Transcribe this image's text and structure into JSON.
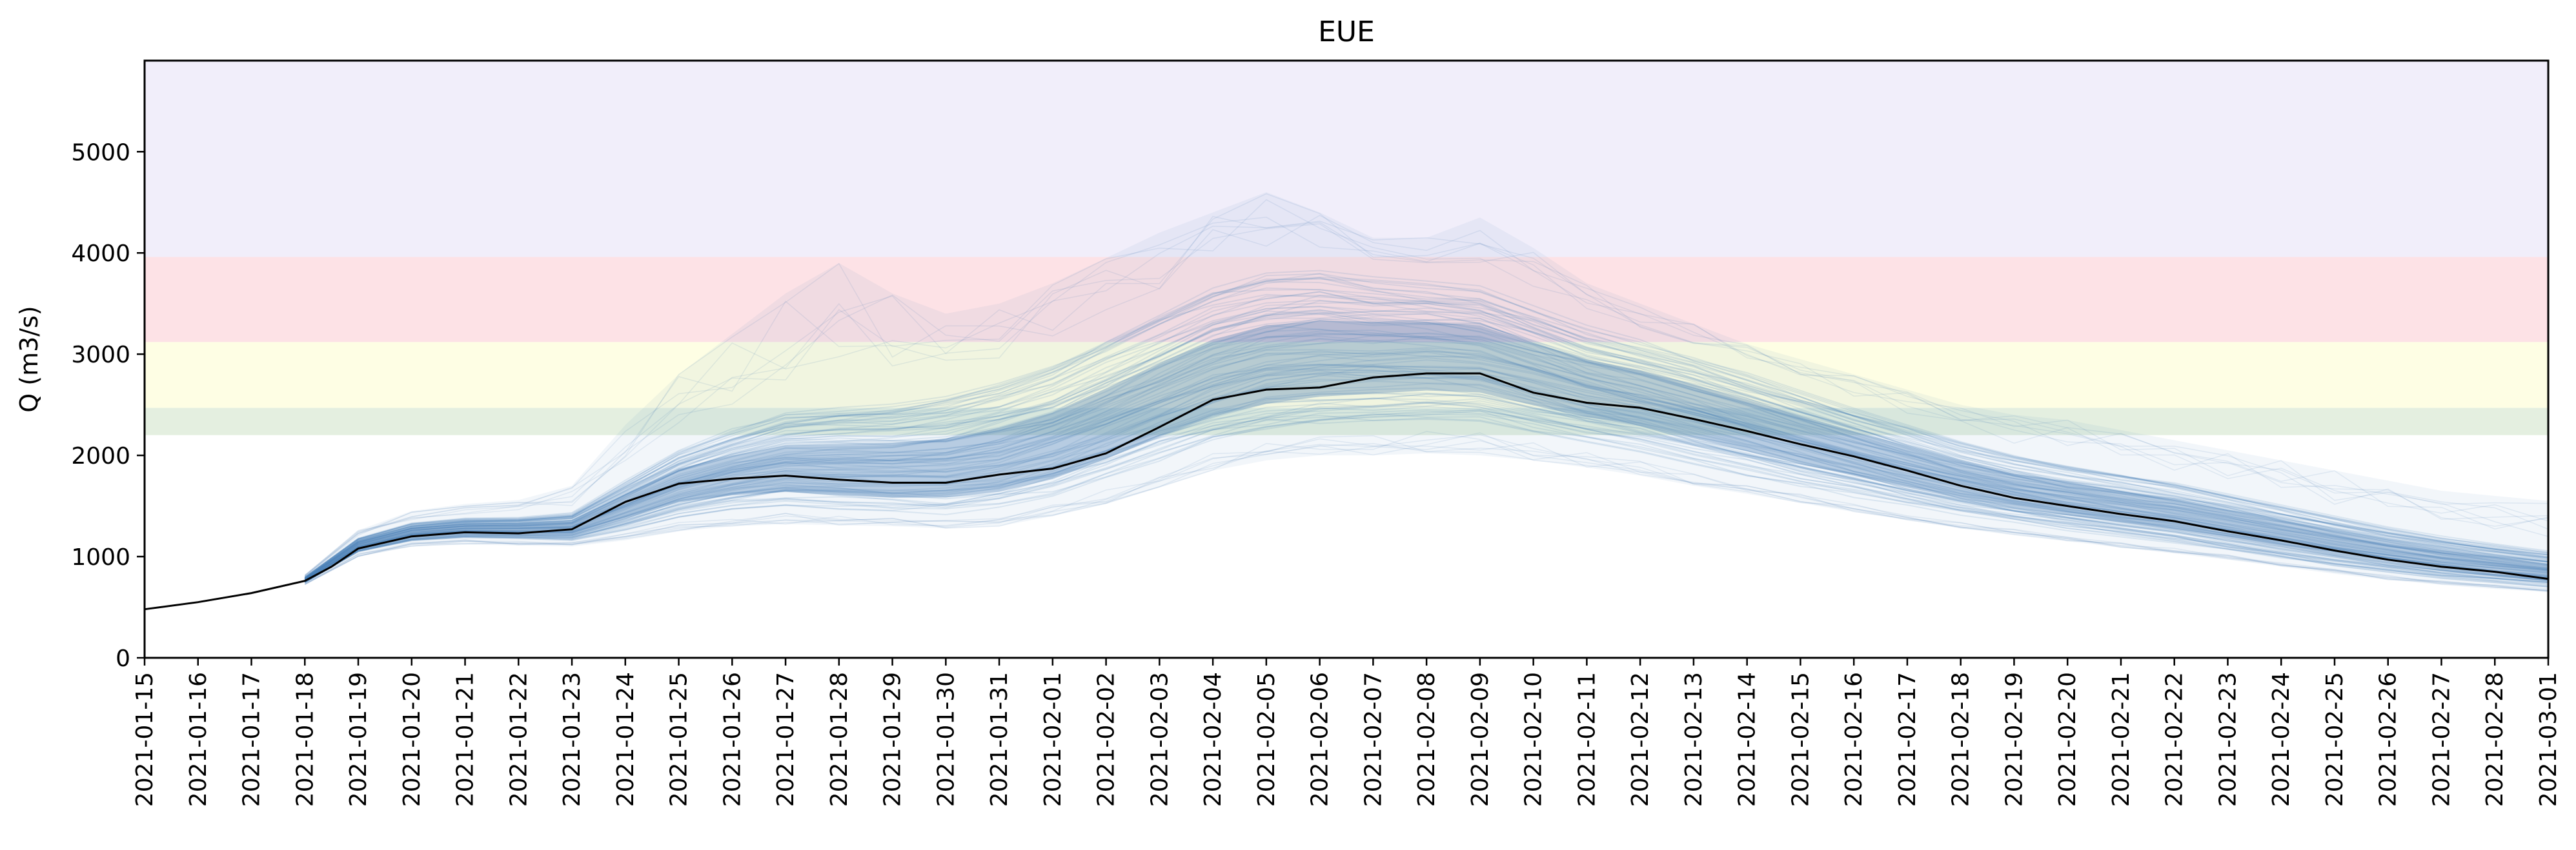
{
  "chart_data": {
    "type": "line",
    "title": "EUE",
    "xlabel": "",
    "ylabel": "Q (m3/s)",
    "xlim": [
      "2021-01-15",
      "2021-03-01"
    ],
    "ylim": [
      0,
      5900
    ],
    "yticks": [
      0,
      1000,
      2000,
      3000,
      4000,
      5000
    ],
    "xticks": [
      "2021-01-15",
      "2021-01-16",
      "2021-01-17",
      "2021-01-18",
      "2021-01-19",
      "2021-01-20",
      "2021-01-21",
      "2021-01-22",
      "2021-01-23",
      "2021-01-24",
      "2021-01-25",
      "2021-01-26",
      "2021-01-27",
      "2021-01-28",
      "2021-01-29",
      "2021-01-30",
      "2021-01-31",
      "2021-02-01",
      "2021-02-02",
      "2021-02-03",
      "2021-02-04",
      "2021-02-05",
      "2021-02-06",
      "2021-02-07",
      "2021-02-08",
      "2021-02-09",
      "2021-02-10",
      "2021-02-11",
      "2021-02-12",
      "2021-02-13",
      "2021-02-14",
      "2021-02-15",
      "2021-02-16",
      "2021-02-17",
      "2021-02-18",
      "2021-02-19",
      "2021-02-20",
      "2021-02-21",
      "2021-02-22",
      "2021-02-23",
      "2021-02-24",
      "2021-02-25",
      "2021-02-26",
      "2021-02-27",
      "2021-02-28",
      "2021-03-01"
    ],
    "grid": false,
    "threshold_bands": [
      {
        "from": 2200,
        "to": 2470,
        "color": "#e4efe0"
      },
      {
        "from": 2470,
        "to": 3120,
        "color": "#fefee4"
      },
      {
        "from": 3120,
        "to": 3960,
        "color": "#fde2e6"
      },
      {
        "from": 3960,
        "to": 5900,
        "color": "#f1eefa"
      }
    ],
    "series": [
      {
        "role": "observed",
        "color": "#000000",
        "x": [
          "2021-01-15",
          "2021-01-16",
          "2021-01-17",
          "2021-01-18",
          "2021-01-18T12:00",
          "2021-01-19",
          "2021-01-20",
          "2021-01-21",
          "2021-01-22",
          "2021-01-23",
          "2021-01-24",
          "2021-01-25",
          "2021-01-26",
          "2021-01-27",
          "2021-01-28",
          "2021-01-29",
          "2021-01-30",
          "2021-01-31",
          "2021-02-01",
          "2021-02-02",
          "2021-02-03",
          "2021-02-04",
          "2021-02-05",
          "2021-02-06",
          "2021-02-07",
          "2021-02-08",
          "2021-02-09",
          "2021-02-10",
          "2021-02-11",
          "2021-02-12",
          "2021-02-13",
          "2021-02-14",
          "2021-02-15",
          "2021-02-16",
          "2021-02-17",
          "2021-02-18",
          "2021-02-19",
          "2021-02-20",
          "2021-02-21",
          "2021-02-22",
          "2021-02-23",
          "2021-02-24",
          "2021-02-25",
          "2021-02-26",
          "2021-02-27",
          "2021-02-28",
          "2021-03-01"
        ],
        "y": [
          480,
          550,
          640,
          760,
          900,
          1080,
          1200,
          1240,
          1230,
          1270,
          1540,
          1720,
          1770,
          1800,
          1760,
          1730,
          1730,
          1810,
          1870,
          2020,
          2280,
          2550,
          2650,
          2670,
          2770,
          2810,
          2810,
          2620,
          2520,
          2470,
          2360,
          2240,
          2110,
          1990,
          1850,
          1700,
          1580,
          1500,
          1420,
          1350,
          1250,
          1160,
          1060,
          970,
          900,
          850,
          780
        ]
      },
      {
        "role": "ensemble",
        "color": "#4a7fb5",
        "x": [
          "2021-01-18",
          "2021-01-19",
          "2021-01-20",
          "2021-01-21",
          "2021-01-22",
          "2021-01-23",
          "2021-01-24",
          "2021-01-25",
          "2021-01-26",
          "2021-01-27",
          "2021-01-28",
          "2021-01-29",
          "2021-01-30",
          "2021-01-31",
          "2021-02-01",
          "2021-02-02",
          "2021-02-03",
          "2021-02-04",
          "2021-02-05",
          "2021-02-06",
          "2021-02-07",
          "2021-02-08",
          "2021-02-09",
          "2021-02-10",
          "2021-02-11",
          "2021-02-12",
          "2021-02-13",
          "2021-02-14",
          "2021-02-15",
          "2021-02-16",
          "2021-02-17",
          "2021-02-18",
          "2021-02-19",
          "2021-02-20",
          "2021-02-21",
          "2021-02-22",
          "2021-02-23",
          "2021-02-24",
          "2021-02-25",
          "2021-02-26",
          "2021-02-27",
          "2021-02-28",
          "2021-03-01"
        ],
        "median": [
          760,
          1100,
          1230,
          1270,
          1260,
          1260,
          1480,
          1680,
          1740,
          1770,
          1740,
          1730,
          1750,
          1820,
          1950,
          2180,
          2430,
          2650,
          2780,
          2850,
          2880,
          2920,
          2900,
          2750,
          2620,
          2550,
          2420,
          2280,
          2140,
          2010,
          1880,
          1750,
          1640,
          1560,
          1480,
          1400,
          1300,
          1200,
          1100,
          1010,
          930,
          870,
          810
        ],
        "band_low": [
          740,
          1040,
          1150,
          1180,
          1170,
          1150,
          1240,
          1360,
          1440,
          1480,
          1440,
          1400,
          1380,
          1420,
          1540,
          1700,
          1880,
          2060,
          2180,
          2250,
          2280,
          2300,
          2280,
          2180,
          2080,
          1980,
          1860,
          1750,
          1640,
          1540,
          1440,
          1360,
          1290,
          1220,
          1160,
          1100,
          1030,
          960,
          890,
          830,
          770,
          730,
          690
        ],
        "band_high": [
          800,
          1190,
          1340,
          1390,
          1400,
          1450,
          1780,
          2100,
          2320,
          2500,
          2560,
          2600,
          2680,
          2820,
          3000,
          3250,
          3500,
          3750,
          3900,
          3920,
          3850,
          3800,
          3750,
          3550,
          3350,
          3200,
          3050,
          2880,
          2700,
          2520,
          2350,
          2180,
          2040,
          1940,
          1850,
          1760,
          1650,
          1540,
          1430,
          1320,
          1230,
          1150,
          1080
        ],
        "extreme_high": [
          820,
          1260,
          1450,
          1520,
          1560,
          1700,
          2300,
          2800,
          3200,
          3600,
          3900,
          3600,
          3400,
          3500,
          3700,
          3950,
          4200,
          4400,
          4600,
          4400,
          4150,
          4150,
          4350,
          4050,
          3700,
          3500,
          3300,
          3100,
          2950,
          2800,
          2650,
          2500,
          2400,
          2350,
          2250,
          2150,
          2050,
          1950,
          1850,
          1750,
          1650,
          1600,
          1550
        ],
        "extreme_low": [
          720,
          1000,
          1100,
          1120,
          1110,
          1100,
          1160,
          1250,
          1300,
          1320,
          1310,
          1300,
          1280,
          1300,
          1400,
          1520,
          1680,
          1850,
          1950,
          2000,
          2000,
          2020,
          2000,
          1950,
          1880,
          1800,
          1700,
          1620,
          1530,
          1440,
          1360,
          1280,
          1210,
          1150,
          1090,
          1030,
          970,
          900,
          830,
          770,
          720,
          680,
          650
        ]
      }
    ]
  }
}
